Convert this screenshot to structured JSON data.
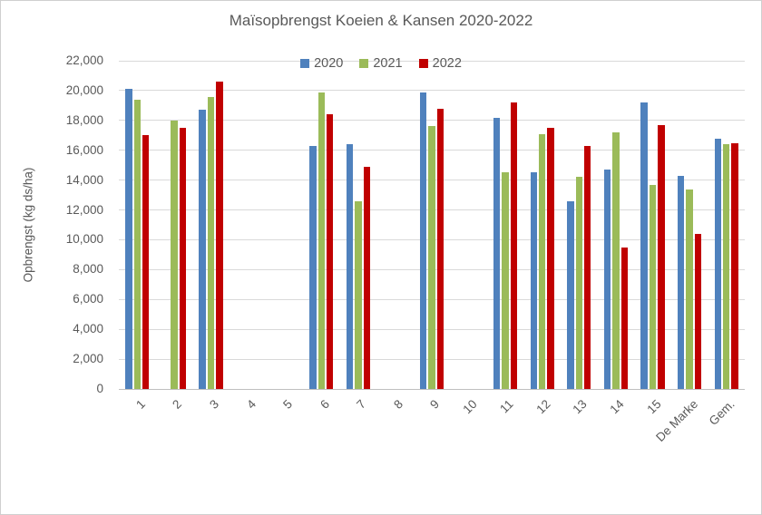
{
  "chart_data": {
    "type": "bar",
    "title": "Maïsopbrengst Koeien & Kansen 2020-2022",
    "ylabel": "Opbrengst (kg ds/ha)",
    "xlabel": "",
    "ylim": [
      0,
      22000
    ],
    "ytick_step": 2000,
    "grid": true,
    "legend_position": "top",
    "categories": [
      "1",
      "2",
      "3",
      "4",
      "5",
      "6",
      "7",
      "8",
      "9",
      "10",
      "11",
      "12",
      "13",
      "14",
      "15",
      "De Marke",
      "Gem."
    ],
    "series": [
      {
        "name": "2020",
        "color": "#4F81BD",
        "values": [
          20100,
          null,
          18700,
          null,
          null,
          16300,
          16400,
          null,
          19900,
          null,
          18200,
          14500,
          12600,
          14700,
          19200,
          14300,
          16800
        ]
      },
      {
        "name": "2021",
        "color": "#9BBB59",
        "values": [
          19400,
          18000,
          19600,
          null,
          null,
          19900,
          12600,
          null,
          17600,
          null,
          14500,
          17100,
          14200,
          17200,
          13700,
          13400,
          16400
        ]
      },
      {
        "name": "2022",
        "color": "#C00000",
        "values": [
          17000,
          17500,
          20600,
          null,
          null,
          18400,
          14900,
          null,
          18800,
          null,
          19200,
          17500,
          16300,
          9500,
          17700,
          10400,
          16500
        ]
      }
    ]
  },
  "colors": {
    "text": "#595959",
    "gridline": "#D9D9D9",
    "axis_line": "#BFBFBF",
    "background": "#FFFFFF",
    "border": "#CFCFCF"
  }
}
